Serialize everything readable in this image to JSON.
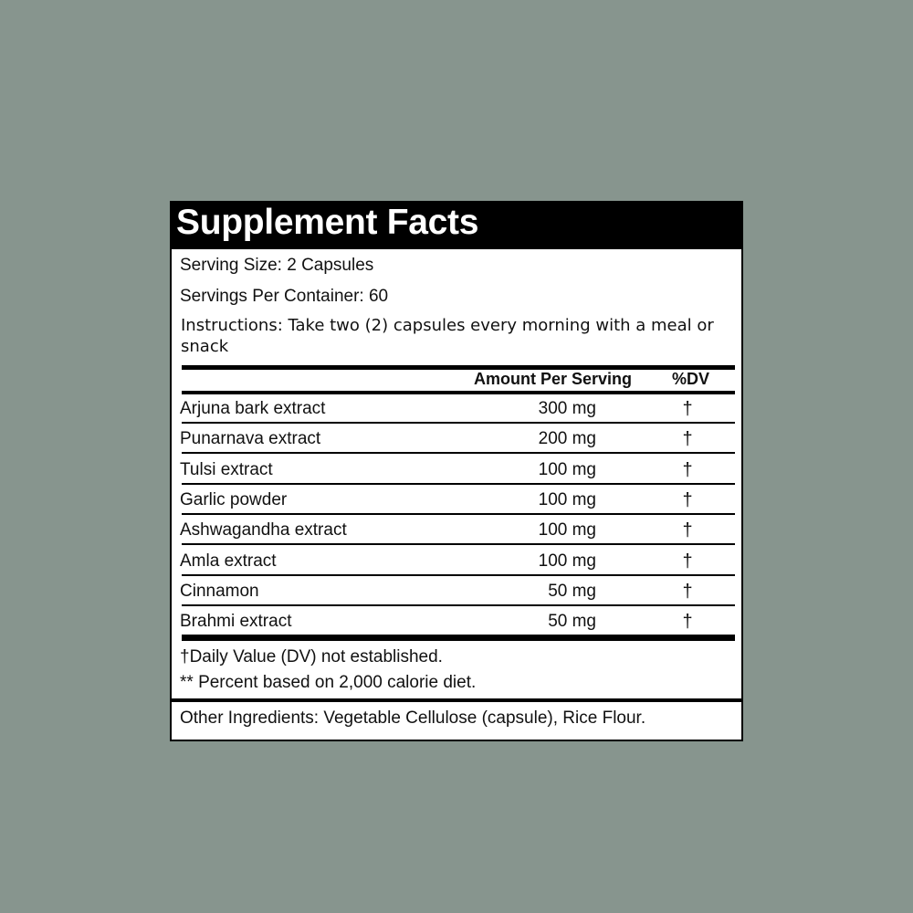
{
  "title": "Supplement Facts",
  "serving_size": "Serving Size: 2 Capsules",
  "servings_per_container": "Servings Per Container: 60",
  "instructions": "Instructions: Take two (2) capsules every morning with a meal or snack",
  "table": {
    "headers": {
      "amount": "Amount Per Serving",
      "dv": "%DV"
    },
    "rows": [
      {
        "name": "Arjuna bark extract",
        "amount": "300 mg",
        "dv": "†"
      },
      {
        "name": "Punarnava extract",
        "amount": "200 mg",
        "dv": "†"
      },
      {
        "name": "Tulsi extract",
        "amount": "100 mg",
        "dv": "†"
      },
      {
        "name": "Garlic powder",
        "amount": "100 mg",
        "dv": "†"
      },
      {
        "name": "Ashwagandha extract",
        "amount": "100 mg",
        "dv": "†"
      },
      {
        "name": "Amla extract",
        "amount": "100 mg",
        "dv": "†"
      },
      {
        "name": "Cinnamon",
        "amount": "50 mg",
        "dv": "†"
      },
      {
        "name": "Brahmi extract",
        "amount": "50 mg",
        "dv": "†"
      }
    ]
  },
  "footnotes": [
    "†Daily Value (DV) not established.",
    "** Percent based on 2,000 calorie diet."
  ],
  "other_ingredients": "Other Ingredients: Vegetable Cellulose (capsule), Rice Flour.",
  "colors": {
    "background": "#87958e",
    "label_black": "#000000"
  }
}
